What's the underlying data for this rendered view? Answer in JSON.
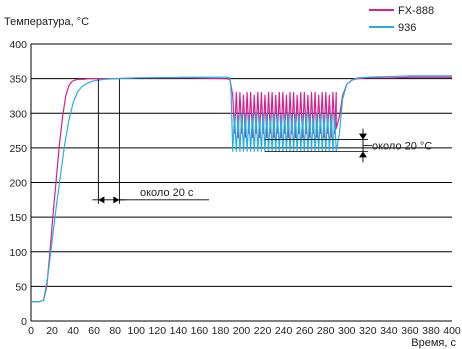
{
  "chart_data": {
    "type": "line",
    "ylabel": "Температура, °С",
    "xlabel": "Время, с",
    "xlim": [
      0,
      400
    ],
    "ylim": [
      0,
      400
    ],
    "x_ticks": [
      0,
      20,
      40,
      60,
      80,
      100,
      120,
      140,
      160,
      180,
      200,
      220,
      240,
      260,
      280,
      300,
      320,
      340,
      360,
      380,
      400
    ],
    "y_ticks": [
      0,
      50,
      100,
      150,
      200,
      250,
      300,
      350,
      400
    ],
    "grid": "horizontal",
    "legend": "top-right",
    "series": [
      {
        "name": "FX-888",
        "color": "#d6218c",
        "x": [
          0,
          8,
          12,
          15,
          18,
          21,
          24,
          27,
          30,
          33,
          36,
          39,
          42,
          45,
          50,
          55,
          60,
          70,
          80,
          100,
          150,
          185,
          189,
          190,
          290,
          293,
          296,
          300,
          305,
          310,
          320,
          340,
          360,
          380,
          400
        ],
        "y": [
          28,
          28,
          30,
          50,
          100,
          155,
          205,
          255,
          295,
          325,
          340,
          346,
          348,
          349,
          349,
          350,
          350,
          350,
          350,
          351,
          351,
          350,
          349,
          340,
          278,
          295,
          325,
          342,
          348,
          350,
          351,
          351,
          352,
          352,
          352
        ]
      },
      {
        "name": "936",
        "color": "#29aee0",
        "x": [
          0,
          8,
          12,
          16,
          20,
          24,
          28,
          32,
          36,
          40,
          44,
          48,
          52,
          56,
          60,
          70,
          80,
          100,
          150,
          185,
          189,
          190,
          290,
          293,
          296,
          300,
          305,
          310,
          320,
          340,
          360,
          380,
          400
        ],
        "y": [
          28,
          28,
          30,
          65,
          115,
          165,
          210,
          255,
          290,
          315,
          330,
          338,
          342,
          345,
          347,
          349,
          350,
          351,
          352,
          352,
          351,
          335,
          245,
          270,
          320,
          342,
          348,
          351,
          352,
          353,
          354,
          354,
          354
        ]
      }
    ],
    "oscillation": {
      "x_start": 190,
      "x_end": 290,
      "fx888_band": [
        265,
        330
      ],
      "s936_band": [
        245,
        300
      ]
    },
    "annotations": [
      {
        "text": "около 20 °С",
        "y_top": 262,
        "y_bottom": 245,
        "x_from": 222,
        "x_to": 325
      },
      {
        "text": "около 20 с",
        "x_left": 64,
        "x_right": 84,
        "y": 175
      }
    ]
  }
}
